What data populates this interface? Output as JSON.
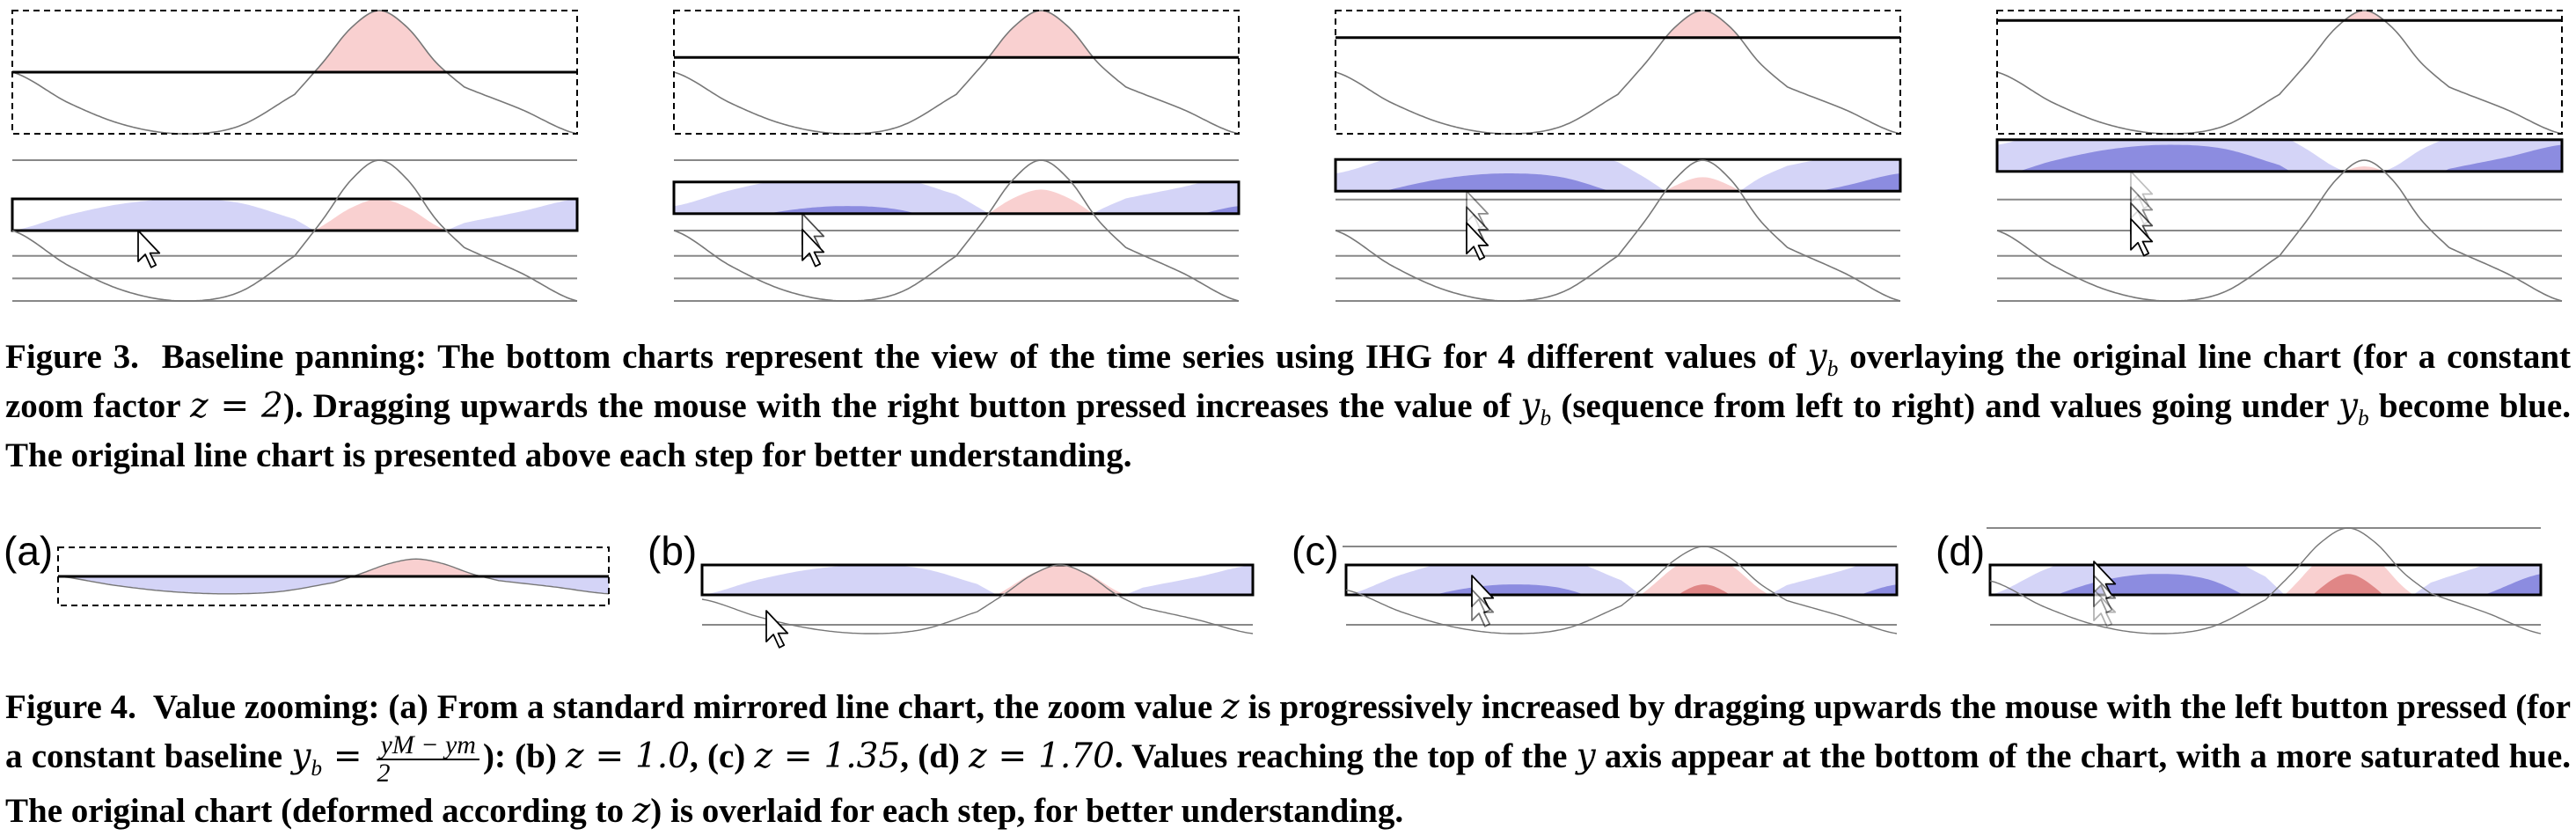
{
  "figure3": {
    "caption_label": "Figure 3.",
    "caption_p1": "Baseline panning: The bottom charts represent the view of the time series using IHG for 4 different values of ",
    "caption_p2": " overlaying the original line chart (for a constant zoom factor ",
    "caption_p3": "). Dragging upwards the mouse with the right button pressed increases the value of ",
    "caption_p4": " (sequence from left to right) and values going under ",
    "caption_p5": " become blue. The original line chart is presented above each step for better understanding.",
    "var_y": "y",
    "var_b": "b",
    "zoom_expr": "z = 2"
  },
  "figure4": {
    "caption_label": "Figure 4.",
    "caption_p1": "Value zooming: ",
    "part_a": "(a)",
    "caption_p2": " From a standard mirrored line chart, the zoom value ",
    "var_z": "z",
    "caption_p3": " is progressively increased by dragging upwards the mouse with the left button pressed (for a constant baseline ",
    "frac_num": "yM − ym",
    "frac_den": "2",
    "caption_p4": "): ",
    "part_b": "(b)",
    "expr_b": "z = 1.0",
    "part_c": "(c)",
    "expr_c": "z = 1.35",
    "part_d": "(d)",
    "expr_d": "z = 1.70",
    "caption_p5": ". Values reaching the top of the ",
    "var_y": "y",
    "caption_p6": " axis appear at the bottom of the chart, with a more saturated hue. The original chart (deformed according to ",
    "caption_p7": ") is overlaid for each step, for better understanding.",
    "panel_labels": [
      "(a)",
      "(b)",
      "(c)",
      "(d)"
    ]
  },
  "colors": {
    "blue_1": "#d4d4f7",
    "blue_2": "#8c8ce0",
    "blue_3": "#5252c4",
    "blue_4": "#1a1a80",
    "red_1": "#f9d0d0",
    "red_2": "#e08686",
    "curve": "#777777",
    "frame": "#000000"
  },
  "chart_data": [
    {
      "type": "line",
      "description_series": "time series (one period)",
      "x": [
        0,
        0.1,
        0.2,
        0.3,
        0.4,
        0.5,
        0.55,
        0.6,
        0.65,
        0.7,
        0.75,
        0.8,
        0.9,
        1.0
      ],
      "y": [
        0.5,
        0.25,
        0.07,
        0.0,
        0.06,
        0.32,
        0.58,
        0.86,
        1.0,
        0.86,
        0.58,
        0.38,
        0.2,
        0.0
      ],
      "fig3_baselines": [
        0.5,
        0.62,
        0.78,
        0.92
      ],
      "fig3_zoom": 2,
      "fig4_zoom": [
        1.0,
        1.35,
        1.7
      ],
      "fig4_baseline": 0.5
    }
  ]
}
